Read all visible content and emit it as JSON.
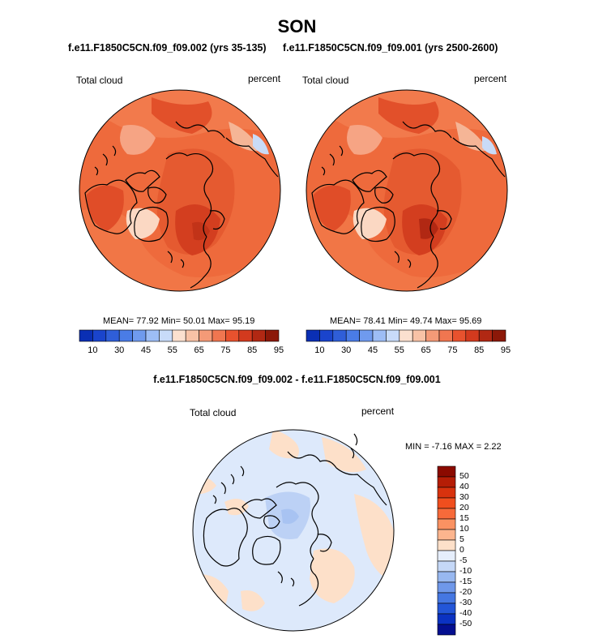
{
  "title": "SON",
  "panels": [
    {
      "run": "f.e11.F1850C5CN.f09_f09.002 (yrs 35-135)",
      "variable": "Total cloud",
      "units": "percent",
      "stats": "MEAN=  77.92  Min=  50.01  Max=  95.19"
    },
    {
      "run": "f.e11.F1850C5CN.f09_f09.001 (yrs 2500-2600)",
      "variable": "Total cloud",
      "units": "percent",
      "stats": "MEAN=  78.41  Min=  49.74  Max=  95.69"
    }
  ],
  "colorbar_top": {
    "colors": [
      "#0a2fb4",
      "#1a44cc",
      "#2f5ed8",
      "#4a7ce6",
      "#6f9aee",
      "#9dbdf5",
      "#c8dbf9",
      "#fbe0cf",
      "#f8c2a6",
      "#f49a77",
      "#f07650",
      "#e8522e",
      "#d33a1e",
      "#b12813",
      "#8c1808"
    ],
    "tick_labels": [
      "10",
      "30",
      "45",
      "55",
      "65",
      "75",
      "85",
      "95"
    ]
  },
  "diff": {
    "title": "f.e11.F1850C5CN.f09_f09.002 - f.e11.F1850C5CN.f09_f09.001",
    "variable": "Total cloud",
    "units": "percent",
    "stats": "MIN =  -7.16 MAX =   2.22",
    "colorbar": {
      "colors": [
        "#8b0a00",
        "#b51d06",
        "#d8320e",
        "#f04e1e",
        "#f76a3a",
        "#fa9262",
        "#fcb58e",
        "#fde0c9",
        "#e6eefb",
        "#c5d8f7",
        "#98b8f0",
        "#6f98ea",
        "#4577e2",
        "#2356d8",
        "#0b32c2",
        "#040f90"
      ],
      "tick_labels": [
        "50",
        "40",
        "30",
        "20",
        "15",
        "10",
        "5",
        "0",
        "-5",
        "-10",
        "-15",
        "-20",
        "-30",
        "-40",
        "-50"
      ]
    }
  }
}
